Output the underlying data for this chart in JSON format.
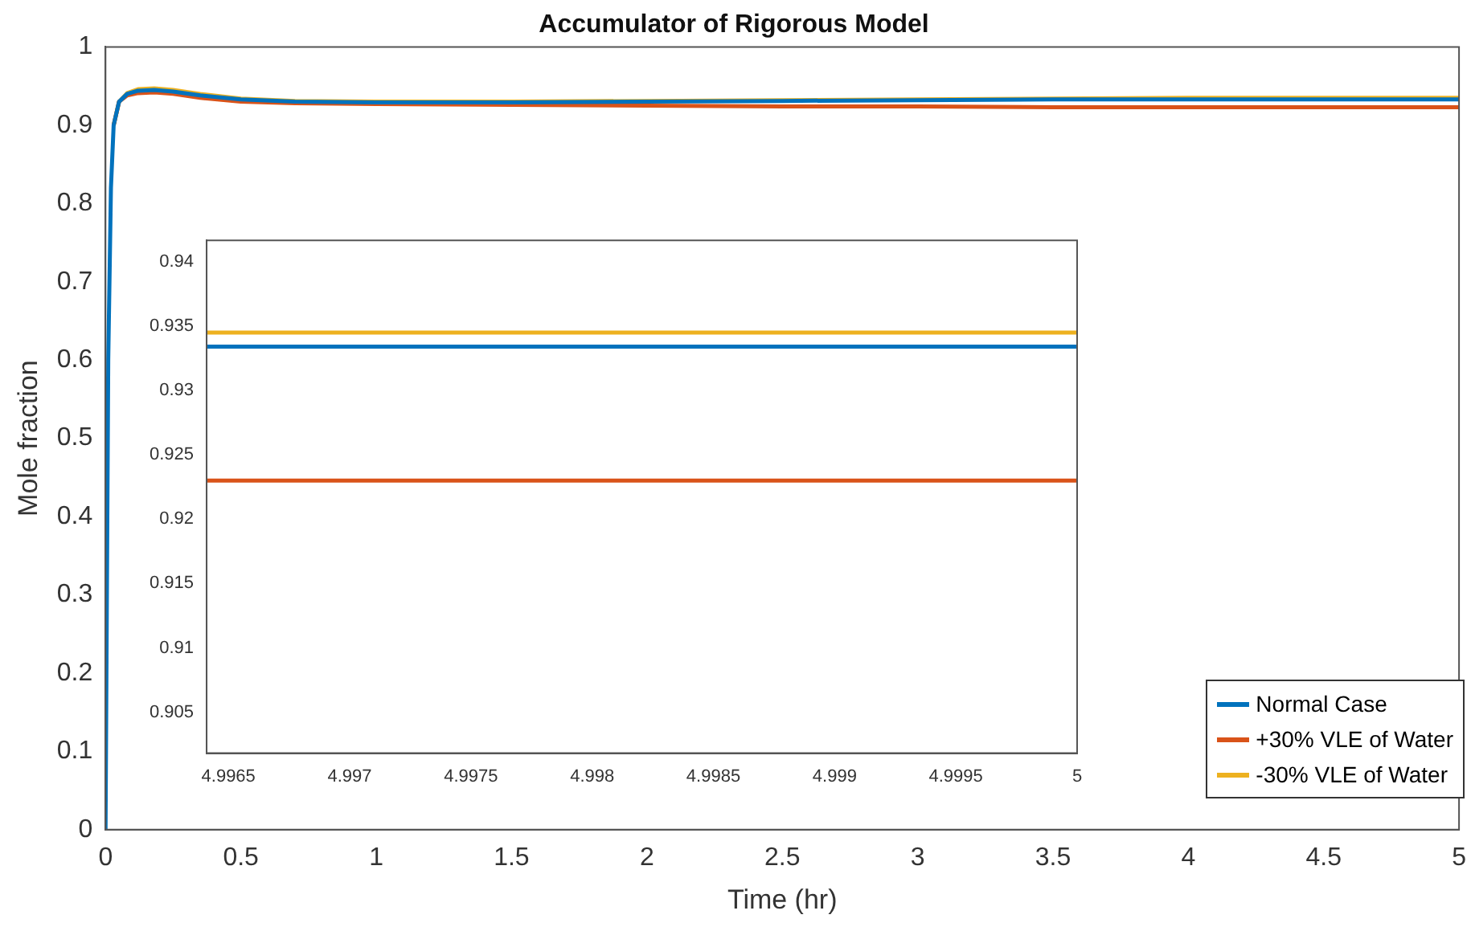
{
  "chart_data": [
    {
      "type": "line",
      "title": "Accumulator of Rigorous Model",
      "xlabel": "Time (hr)",
      "ylabel": "Mole fraction",
      "x": [
        0,
        0.01,
        0.02,
        0.03,
        0.05,
        0.08,
        0.12,
        0.18,
        0.25,
        0.35,
        0.5,
        0.7,
        1,
        1.5,
        2,
        2.5,
        3,
        3.5,
        4,
        4.5,
        5
      ],
      "xlim": [
        0,
        5
      ],
      "ylim": [
        0,
        1
      ],
      "xticks": [
        0,
        0.5,
        1,
        1.5,
        2,
        2.5,
        3,
        3.5,
        4,
        4.5,
        5
      ],
      "yticks": [
        0,
        0.1,
        0.2,
        0.3,
        0.4,
        0.5,
        0.6,
        0.7,
        0.8,
        0.9,
        1
      ],
      "legend": "bottom right",
      "series": [
        {
          "name": "Normal Case",
          "color": "#0072bd",
          "values": [
            0,
            0.6,
            0.82,
            0.9,
            0.93,
            0.94,
            0.944,
            0.945,
            0.943,
            0.938,
            0.933,
            0.93,
            0.929,
            0.929,
            0.93,
            0.931,
            0.932,
            0.933,
            0.933,
            0.933,
            0.933
          ]
        },
        {
          "name": "+30% VLE of Water",
          "color": "#d95319",
          "values": [
            null,
            null,
            null,
            0.9,
            0.93,
            0.938,
            0.941,
            0.942,
            0.94,
            0.935,
            0.93,
            0.928,
            0.927,
            0.926,
            0.925,
            0.924,
            0.924,
            0.923,
            0.923,
            0.923,
            0.923
          ]
        },
        {
          "name": "-30% VLE of Water",
          "color": "#edb120",
          "values": [
            null,
            null,
            null,
            0.9,
            0.93,
            0.941,
            0.946,
            0.947,
            0.945,
            0.94,
            0.934,
            0.931,
            0.93,
            0.93,
            0.931,
            0.932,
            0.933,
            0.934,
            0.935,
            0.935,
            0.935
          ]
        }
      ]
    },
    {
      "type": "line",
      "x": [
        4.99641,
        5
      ],
      "xlim": [
        4.99641,
        5
      ],
      "ylim": [
        0.90182,
        0.94166
      ],
      "xticks": [
        4.9965,
        4.997,
        4.9975,
        4.998,
        4.9985,
        4.999,
        4.9995,
        5
      ],
      "yticks": [
        0.905,
        0.91,
        0.915,
        0.92,
        0.925,
        0.93,
        0.935,
        0.94
      ],
      "series": [
        {
          "color": "#0072bd",
          "values": [
            0.9334,
            0.9334
          ]
        },
        {
          "color": "#d95319",
          "values": [
            0.923,
            0.923
          ]
        },
        {
          "color": "#edb120",
          "values": [
            0.9345,
            0.9345
          ]
        }
      ]
    }
  ]
}
